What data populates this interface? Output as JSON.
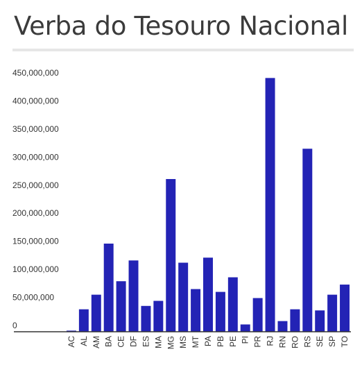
{
  "title": "Verba do Tesouro Nacional",
  "colors": {
    "bar": "#2323b5",
    "axis": "#333333",
    "rule": "#e6e6e6"
  },
  "chart_data": {
    "type": "bar",
    "title": "Verba do Tesouro Nacional",
    "xlabel": "",
    "ylabel": "",
    "grid": false,
    "legend": "none",
    "ylim": [
      0,
      450000000
    ],
    "yticks": [
      0,
      50000000,
      100000000,
      150000000,
      200000000,
      250000000,
      300000000,
      350000000,
      400000000,
      450000000
    ],
    "ytick_labels": [
      "0",
      "50,000,000",
      "100,000,000",
      "150,000,000",
      "200,000,000",
      "250,000,000",
      "300,000,000",
      "350,000,000",
      "400,000,000",
      "450,000,000"
    ],
    "categories": [
      "AC",
      "AL",
      "AM",
      "BA",
      "CE",
      "DF",
      "ES",
      "MA",
      "MG",
      "MS",
      "MT",
      "PA",
      "PB",
      "PE",
      "PI",
      "PR",
      "RJ",
      "RN",
      "RO",
      "RS",
      "SE",
      "SP",
      "TO"
    ],
    "values": [
      2000000,
      40000000,
      66000000,
      157000000,
      90000000,
      127000000,
      46000000,
      55000000,
      272000000,
      123000000,
      76000000,
      132000000,
      71000000,
      97000000,
      13000000,
      60000000,
      452000000,
      19000000,
      40000000,
      326000000,
      38000000,
      66000000,
      84000000
    ]
  }
}
